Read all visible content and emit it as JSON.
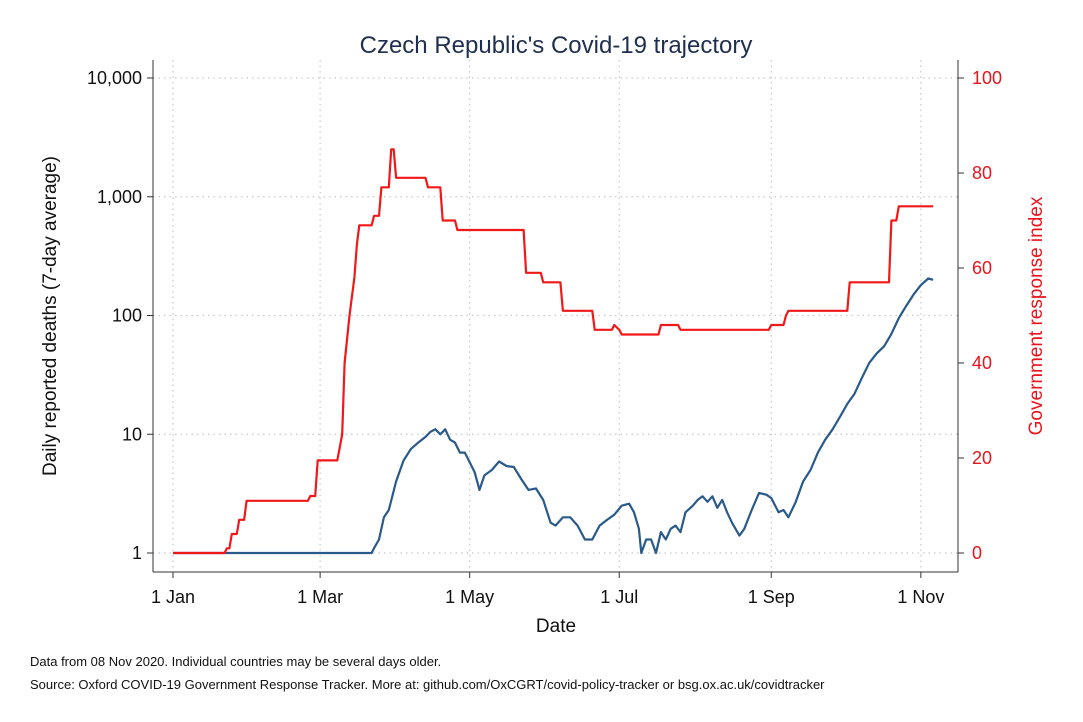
{
  "chart_data": {
    "type": "line",
    "title": "Czech Republic's Covid-19 trajectory",
    "xlabel": "Date",
    "ylabel": "Daily reported deaths (7-day average)",
    "y2label": "Government response index",
    "x_range": [
      "2020-01-01",
      "2020-11-08"
    ],
    "x_ticks": [
      {
        "date": "2020-01-01",
        "label": "1 Jan"
      },
      {
        "date": "2020-03-01",
        "label": "1 Mar"
      },
      {
        "date": "2020-05-01",
        "label": "1 May"
      },
      {
        "date": "2020-07-01",
        "label": "1 Jul"
      },
      {
        "date": "2020-09-01",
        "label": "1 Sep"
      },
      {
        "date": "2020-11-01",
        "label": "1 Nov"
      }
    ],
    "y_scale": "log",
    "y_range": [
      1,
      10000
    ],
    "y_ticks": [
      {
        "value": 1,
        "label": "1"
      },
      {
        "value": 10,
        "label": "10"
      },
      {
        "value": 100,
        "label": "100"
      },
      {
        "value": 1000,
        "label": "1,000"
      },
      {
        "value": 10000,
        "label": "10,000"
      }
    ],
    "y2_range": [
      0,
      100
    ],
    "y2_ticks": [
      {
        "value": 0,
        "label": "0"
      },
      {
        "value": 20,
        "label": "20"
      },
      {
        "value": 40,
        "label": "40"
      },
      {
        "value": 60,
        "label": "60"
      },
      {
        "value": 80,
        "label": "80"
      },
      {
        "value": 100,
        "label": "100"
      }
    ],
    "grid": true,
    "legend": "none",
    "colors": {
      "deaths": "#2a5a8a",
      "response": "#f01818",
      "title": "#1f2f4e",
      "right_axis": "#e8141b"
    },
    "series": [
      {
        "axis": "left",
        "color": "#2a5a8a",
        "points": [
          [
            "2020-01-01",
            1
          ],
          [
            "2020-03-22",
            1
          ],
          [
            "2020-03-23",
            1.1
          ],
          [
            "2020-03-25",
            1.3
          ],
          [
            "2020-03-27",
            2
          ],
          [
            "2020-03-29",
            2.3
          ],
          [
            "2020-04-01",
            4
          ],
          [
            "2020-04-04",
            6
          ],
          [
            "2020-04-07",
            7.5
          ],
          [
            "2020-04-10",
            8.5
          ],
          [
            "2020-04-13",
            9.5
          ],
          [
            "2020-04-15",
            10.5
          ],
          [
            "2020-04-17",
            11
          ],
          [
            "2020-04-19",
            10
          ],
          [
            "2020-04-21",
            11
          ],
          [
            "2020-04-23",
            9
          ],
          [
            "2020-04-25",
            8.5
          ],
          [
            "2020-04-27",
            7
          ],
          [
            "2020-04-29",
            7
          ],
          [
            "2020-05-01",
            5.8
          ],
          [
            "2020-05-03",
            4.8
          ],
          [
            "2020-05-05",
            3.4
          ],
          [
            "2020-05-07",
            4.5
          ],
          [
            "2020-05-10",
            5
          ],
          [
            "2020-05-13",
            5.9
          ],
          [
            "2020-05-16",
            5.4
          ],
          [
            "2020-05-19",
            5.3
          ],
          [
            "2020-05-22",
            4.2
          ],
          [
            "2020-05-25",
            3.4
          ],
          [
            "2020-05-28",
            3.5
          ],
          [
            "2020-05-31",
            2.8
          ],
          [
            "2020-06-03",
            1.8
          ],
          [
            "2020-06-05",
            1.7
          ],
          [
            "2020-06-08",
            2
          ],
          [
            "2020-06-11",
            2
          ],
          [
            "2020-06-14",
            1.7
          ],
          [
            "2020-06-17",
            1.3
          ],
          [
            "2020-06-20",
            1.3
          ],
          [
            "2020-06-23",
            1.7
          ],
          [
            "2020-06-26",
            1.9
          ],
          [
            "2020-06-29",
            2.1
          ],
          [
            "2020-07-02",
            2.5
          ],
          [
            "2020-07-05",
            2.6
          ],
          [
            "2020-07-07",
            2.2
          ],
          [
            "2020-07-09",
            1.6
          ],
          [
            "2020-07-10",
            1
          ],
          [
            "2020-07-12",
            1.3
          ],
          [
            "2020-07-14",
            1.3
          ],
          [
            "2020-07-16",
            1
          ],
          [
            "2020-07-18",
            1.5
          ],
          [
            "2020-07-20",
            1.3
          ],
          [
            "2020-07-22",
            1.6
          ],
          [
            "2020-07-24",
            1.7
          ],
          [
            "2020-07-26",
            1.5
          ],
          [
            "2020-07-28",
            2.2
          ],
          [
            "2020-07-31",
            2.5
          ],
          [
            "2020-08-02",
            2.8
          ],
          [
            "2020-08-04",
            3
          ],
          [
            "2020-08-06",
            2.7
          ],
          [
            "2020-08-08",
            3
          ],
          [
            "2020-08-10",
            2.4
          ],
          [
            "2020-08-12",
            2.8
          ],
          [
            "2020-08-14",
            2.2
          ],
          [
            "2020-08-16",
            1.8
          ],
          [
            "2020-08-19",
            1.4
          ],
          [
            "2020-08-21",
            1.6
          ],
          [
            "2020-08-24",
            2.3
          ],
          [
            "2020-08-27",
            3.2
          ],
          [
            "2020-08-30",
            3.1
          ],
          [
            "2020-09-01",
            2.9
          ],
          [
            "2020-09-04",
            2.2
          ],
          [
            "2020-09-06",
            2.3
          ],
          [
            "2020-09-08",
            2
          ],
          [
            "2020-09-11",
            2.7
          ],
          [
            "2020-09-14",
            4
          ],
          [
            "2020-09-17",
            5
          ],
          [
            "2020-09-20",
            7
          ],
          [
            "2020-09-23",
            9
          ],
          [
            "2020-09-26",
            11
          ],
          [
            "2020-09-29",
            14
          ],
          [
            "2020-10-02",
            18
          ],
          [
            "2020-10-05",
            22
          ],
          [
            "2020-10-08",
            30
          ],
          [
            "2020-10-11",
            40
          ],
          [
            "2020-10-14",
            48
          ],
          [
            "2020-10-17",
            55
          ],
          [
            "2020-10-20",
            70
          ],
          [
            "2020-10-23",
            95
          ],
          [
            "2020-10-26",
            120
          ],
          [
            "2020-10-29",
            150
          ],
          [
            "2020-11-01",
            180
          ],
          [
            "2020-11-04",
            205
          ],
          [
            "2020-11-06",
            200
          ]
        ]
      },
      {
        "axis": "right",
        "color": "#f01818",
        "points": [
          [
            "2020-01-01",
            0
          ],
          [
            "2020-01-22",
            0
          ],
          [
            "2020-01-23",
            1
          ],
          [
            "2020-01-24",
            1
          ],
          [
            "2020-01-25",
            4
          ],
          [
            "2020-01-27",
            4
          ],
          [
            "2020-01-28",
            7
          ],
          [
            "2020-01-30",
            7
          ],
          [
            "2020-01-31",
            11
          ],
          [
            "2020-02-25",
            11
          ],
          [
            "2020-02-26",
            12
          ],
          [
            "2020-02-28",
            12
          ],
          [
            "2020-02-29",
            19.5
          ],
          [
            "2020-03-08",
            19.5
          ],
          [
            "2020-03-10",
            25
          ],
          [
            "2020-03-11",
            40
          ],
          [
            "2020-03-13",
            50
          ],
          [
            "2020-03-15",
            58
          ],
          [
            "2020-03-16",
            65
          ],
          [
            "2020-03-17",
            69
          ],
          [
            "2020-03-22",
            69
          ],
          [
            "2020-03-23",
            71
          ],
          [
            "2020-03-25",
            71
          ],
          [
            "2020-03-26",
            77
          ],
          [
            "2020-03-29",
            77
          ],
          [
            "2020-03-30",
            85
          ],
          [
            "2020-03-31",
            85
          ],
          [
            "2020-04-01",
            79
          ],
          [
            "2020-04-13",
            79
          ],
          [
            "2020-04-14",
            77
          ],
          [
            "2020-04-19",
            77
          ],
          [
            "2020-04-20",
            70
          ],
          [
            "2020-04-25",
            70
          ],
          [
            "2020-04-26",
            68
          ],
          [
            "2020-05-23",
            68
          ],
          [
            "2020-05-24",
            59
          ],
          [
            "2020-05-30",
            59
          ],
          [
            "2020-05-31",
            57
          ],
          [
            "2020-06-07",
            57
          ],
          [
            "2020-06-08",
            51
          ],
          [
            "2020-06-20",
            51
          ],
          [
            "2020-06-21",
            47
          ],
          [
            "2020-06-28",
            47
          ],
          [
            "2020-06-29",
            48
          ],
          [
            "2020-07-01",
            47
          ],
          [
            "2020-07-02",
            46
          ],
          [
            "2020-07-17",
            46
          ],
          [
            "2020-07-18",
            48
          ],
          [
            "2020-07-25",
            48
          ],
          [
            "2020-07-26",
            47
          ],
          [
            "2020-08-31",
            47
          ],
          [
            "2020-09-01",
            48
          ],
          [
            "2020-09-06",
            48
          ],
          [
            "2020-09-07",
            50
          ],
          [
            "2020-09-08",
            51
          ],
          [
            "2020-10-02",
            51
          ],
          [
            "2020-10-03",
            57
          ],
          [
            "2020-10-19",
            57
          ],
          [
            "2020-10-20",
            70
          ],
          [
            "2020-10-22",
            70
          ],
          [
            "2020-10-23",
            73
          ],
          [
            "2020-11-06",
            73
          ]
        ]
      }
    ]
  },
  "notes": {
    "line1": "Data from 08 Nov 2020. Individual countries may be several days older.",
    "line2": "Source: Oxford COVID-19 Government Response Tracker. More at: github.com/OxCGRT/covid-policy-tracker or bsg.ox.ac.uk/covidtracker"
  }
}
